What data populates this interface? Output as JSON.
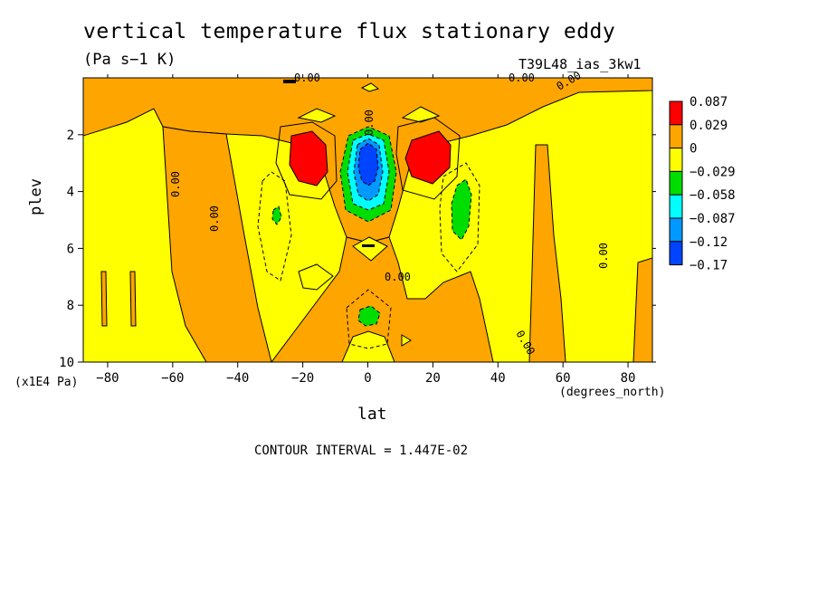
{
  "chart_data": {
    "type": "heatmap",
    "title": "vertical temperature flux stationary eddy",
    "units": "(Pa s−1 K)",
    "run_id": "T39L48_ias_3kw1",
    "xlabel": "lat",
    "x_units": "(degrees_north)",
    "ylabel": "plev",
    "y_units": "(x1E4 Pa)",
    "xlim": [
      -87.5,
      87.5
    ],
    "ylim": [
      10,
      0
    ],
    "x_ticks": [
      -80,
      -60,
      -40,
      -20,
      0,
      20,
      40,
      60,
      80
    ],
    "y_ticks": [
      2,
      4,
      6,
      8,
      10
    ],
    "contour_interval_text": "CONTOUR INTERVAL = 1.447E-02",
    "contour_labels": [
      "0.00",
      "0.00",
      "0.00",
      "0.00",
      "0.00",
      "0.00",
      "0.00",
      "0.00",
      "0.00"
    ],
    "colorbar": {
      "levels": [
        "0.087",
        "0.029",
        "0",
        "−0.029",
        "−0.058",
        "−0.087",
        "−0.12",
        "−0.17"
      ],
      "colors": [
        "#ff0000",
        "#ffa500",
        "#ffff00",
        "#00dd00",
        "#00ffff",
        "#0099ff",
        "#0044ff"
      ]
    },
    "features": [
      {
        "name": "positive max",
        "lat": -18,
        "plev": 2.8,
        "class": "0.087"
      },
      {
        "name": "positive max",
        "lat": 18,
        "plev": 2.8,
        "class": "0.087"
      },
      {
        "name": "negative min",
        "lat": 0,
        "plev": 3.2,
        "class": "−0.17"
      },
      {
        "name": "negative secondary",
        "lat": 30,
        "plev": 4.5,
        "class": "−0.058"
      },
      {
        "name": "negative secondary",
        "lat": -28,
        "plev": 5.0,
        "class": "−0.058"
      },
      {
        "name": "negative lower",
        "lat": 0,
        "plev": 8.5,
        "class": "−0.058"
      }
    ]
  }
}
